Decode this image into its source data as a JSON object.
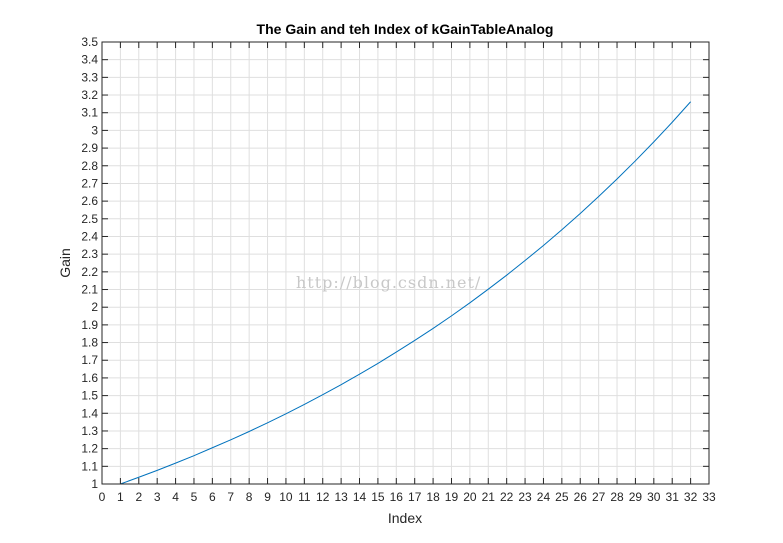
{
  "chart_data": {
    "type": "line",
    "title": "The Gain and teh Index of  kGainTableAnalog",
    "xlabel": "Index",
    "ylabel": "Gain",
    "xlim": [
      0,
      33
    ],
    "ylim": [
      1,
      3.5
    ],
    "xticks": [
      0,
      1,
      2,
      3,
      4,
      5,
      6,
      7,
      8,
      9,
      10,
      11,
      12,
      13,
      14,
      15,
      16,
      17,
      18,
      19,
      20,
      21,
      22,
      23,
      24,
      25,
      26,
      27,
      28,
      29,
      30,
      31,
      32,
      33
    ],
    "yticks": [
      1,
      1.1,
      1.2,
      1.3,
      1.4,
      1.5,
      1.6,
      1.7,
      1.8,
      1.9,
      2,
      2.1,
      2.2,
      2.3,
      2.4,
      2.5,
      2.6,
      2.7,
      2.8,
      2.9,
      3,
      3.1,
      3.2,
      3.3,
      3.4,
      3.5
    ],
    "grid": true,
    "series": [
      {
        "color": "#0072bd",
        "x": [
          1,
          2,
          3,
          4,
          5,
          6,
          7,
          8,
          9,
          10,
          11,
          12,
          13,
          14,
          15,
          16,
          17,
          18,
          19,
          20,
          21,
          22,
          23,
          24,
          25,
          26,
          27,
          28,
          29,
          30,
          31,
          32
        ],
        "values": [
          1.0,
          1.038,
          1.077,
          1.118,
          1.16,
          1.205,
          1.25,
          1.297,
          1.346,
          1.397,
          1.45,
          1.505,
          1.562,
          1.621,
          1.682,
          1.746,
          1.812,
          1.88,
          1.951,
          2.025,
          2.102,
          2.181,
          2.264,
          2.349,
          2.438,
          2.53,
          2.626,
          2.725,
          2.828,
          2.935,
          3.046,
          3.162
        ]
      }
    ]
  },
  "watermark": "http://blog.csdn.net/"
}
